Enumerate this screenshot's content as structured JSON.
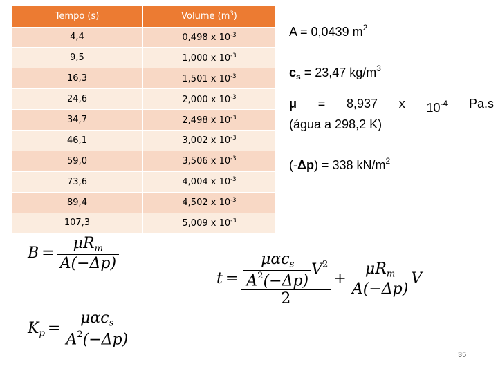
{
  "table": {
    "headers": [
      "Tempo (s)",
      "Volume (m",
      "3",
      ")"
    ],
    "rows": [
      {
        "tempo": "4,4",
        "volume": "0,498 x 10",
        "exp": "-3"
      },
      {
        "tempo": "9,5",
        "volume": "1,000 x 10",
        "exp": "-3"
      },
      {
        "tempo": "16,3",
        "volume": "1,501 x 10",
        "exp": "-3"
      },
      {
        "tempo": "24,6",
        "volume": "2,000 x 10",
        "exp": "-3"
      },
      {
        "tempo": "34,7",
        "volume": "2,498 x 10",
        "exp": "-3"
      },
      {
        "tempo": "46,1",
        "volume": "3,002 x 10",
        "exp": "-3"
      },
      {
        "tempo": "59,0",
        "volume": "3,506 x 10",
        "exp": "-3"
      },
      {
        "tempo": "73,6",
        "volume": "4,004 x 10",
        "exp": "-3"
      },
      {
        "tempo": "89,4",
        "volume": "4,502 x 10",
        "exp": "-3"
      },
      {
        "tempo": "107,3",
        "volume": "5,009 x 10",
        "exp": "-3"
      }
    ]
  },
  "params": {
    "area": {
      "text": "A = 0,0439 m",
      "sup": "2"
    },
    "cs": {
      "symbol": "c",
      "sub": "s",
      "text": " = 23,47 kg/m",
      "sup": "3"
    },
    "mu": {
      "symbol": "μ",
      "eq": "=",
      "value": "8,937",
      "times": "x",
      "base": "10",
      "sup": "-4",
      "unit": "Pa.s",
      "line2": "(água a 298,2 K)"
    },
    "dp": {
      "open": "(-",
      "symbol": "Δp",
      "text": ") = 338 kN/m",
      "sup": "2"
    }
  },
  "equations": {
    "b": {
      "lhs": "B",
      "eq": "=",
      "num_mu": "μ",
      "num_r": "R",
      "num_sub": "m",
      "den": "A(−Δp)"
    },
    "kp": {
      "lhs": "K",
      "lhs_sub": "p",
      "eq": "=",
      "num": "μαc",
      "num_sub": "s",
      "den_a": "A",
      "den_sup": "2",
      "den_rest": "(−Δp)"
    },
    "t": {
      "lhs": "t",
      "eq": "=",
      "inner_num": "μαc",
      "inner_num_sub": "s",
      "inner_den_a": "A",
      "inner_den_sup": "2",
      "inner_den_rest": "(−Δp)",
      "v": "V",
      "v_sup": "2",
      "outer_den": "2",
      "plus": "+",
      "num2_mu": "μ",
      "num2_r": "R",
      "num2_sub": "m",
      "den2": "A(−Δp)",
      "v2": "V"
    }
  },
  "page_number": "35",
  "colors": {
    "header": "#ec7b32",
    "row_odd": "#f8d8c5",
    "row_even": "#fbecdf"
  }
}
